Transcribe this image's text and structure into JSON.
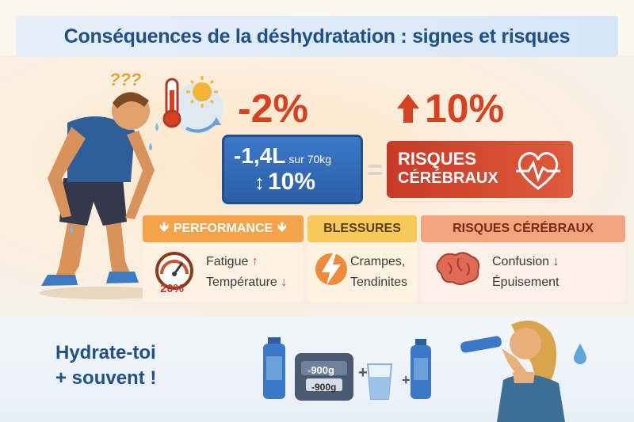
{
  "header": {
    "title": "Conséquences de la déshydratation : signes et risques"
  },
  "illustration": {
    "question_marks": "???"
  },
  "stats": {
    "loss_percent": "-2%",
    "increase_percent": "10%",
    "blue_box": {
      "amount": "-1,4L",
      "amount_note": "sur 70kg",
      "change": "10%"
    },
    "equals_sign": "=",
    "red_box": {
      "line1": "RISQUES",
      "line2": "CÉRÉBRAUX"
    }
  },
  "categories": [
    {
      "title": "PERFORMANCE",
      "gauge_value": "20%",
      "items": [
        "Fatigue",
        "Température"
      ]
    },
    {
      "title": "BLESSURES",
      "items": [
        "Crampes,",
        "Tendinites"
      ]
    },
    {
      "title": "RISQUES CÉRÉBRAUX",
      "items": [
        "Confusion",
        "Épuisement"
      ]
    }
  ],
  "footer": {
    "hydrate_line1": "Hydrate-toi",
    "hydrate_line2": "+ souvent !",
    "scale_label1": "-900g",
    "scale_label2": "-900g",
    "plus1": "+",
    "plus2": "+"
  },
  "colors": {
    "title_blue": "#1f4f8c",
    "accent_red": "#d8401f",
    "box_blue": "#2b5fa8",
    "performance_orange": "#f4a34b",
    "blessures_yellow": "#f6c95a",
    "cerebral_salmon": "#f2a47f"
  },
  "icons": [
    "thermometer-icon",
    "sun-icon",
    "heart-pulse-icon",
    "gauge-icon",
    "lightning-icon",
    "brain-icon",
    "water-bottle-icon",
    "scale-icon",
    "glass-icon",
    "water-drop-icon"
  ]
}
